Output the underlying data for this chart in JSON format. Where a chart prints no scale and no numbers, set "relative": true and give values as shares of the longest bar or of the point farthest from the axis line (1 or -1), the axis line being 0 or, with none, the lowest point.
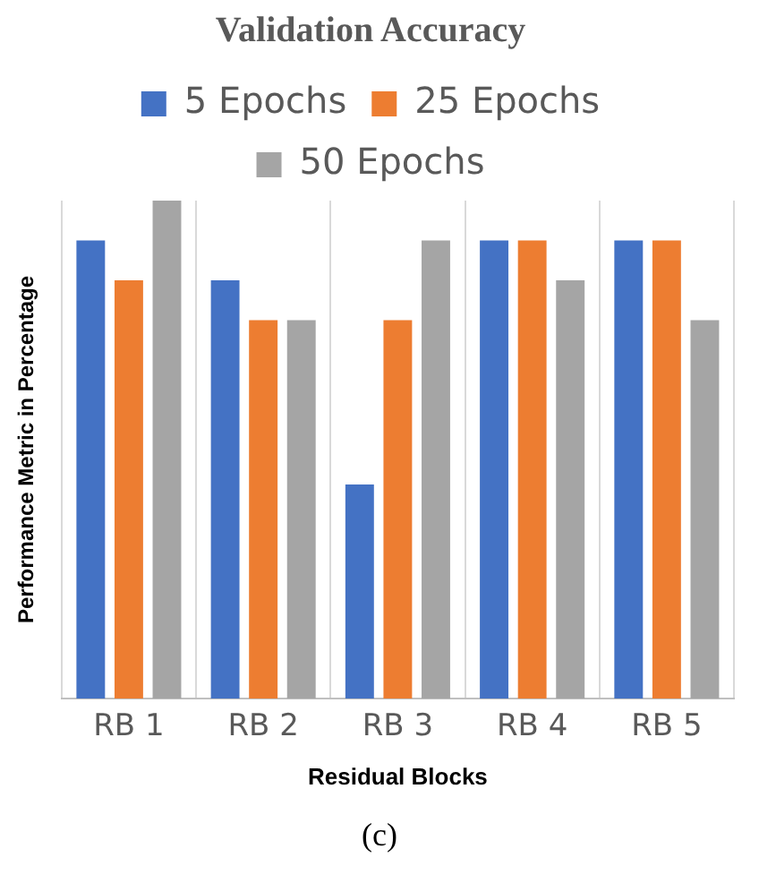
{
  "chart_data": {
    "type": "bar",
    "title": "Validation Accuracy",
    "xlabel": "Residual Blocks",
    "ylabel": "Performance Metric in Percentage",
    "categories": [
      "RB 1",
      "RB 2",
      "RB 3",
      "RB 4",
      "RB 5"
    ],
    "relative": true,
    "grid": "x",
    "legend": "top",
    "series": [
      {
        "name": "5 Epochs",
        "color": "#4472c4",
        "values": [
          0.92,
          0.84,
          0.43,
          0.92,
          0.92
        ]
      },
      {
        "name": "25 Epochs",
        "color": "#ed7d31",
        "values": [
          0.84,
          0.76,
          0.76,
          0.92,
          0.92
        ]
      },
      {
        "name": "50 Epochs",
        "color": "#a5a5a5",
        "values": [
          1,
          0.76,
          0.92,
          0.84,
          0.76
        ]
      }
    ],
    "annotations": [
      "(c)"
    ]
  }
}
